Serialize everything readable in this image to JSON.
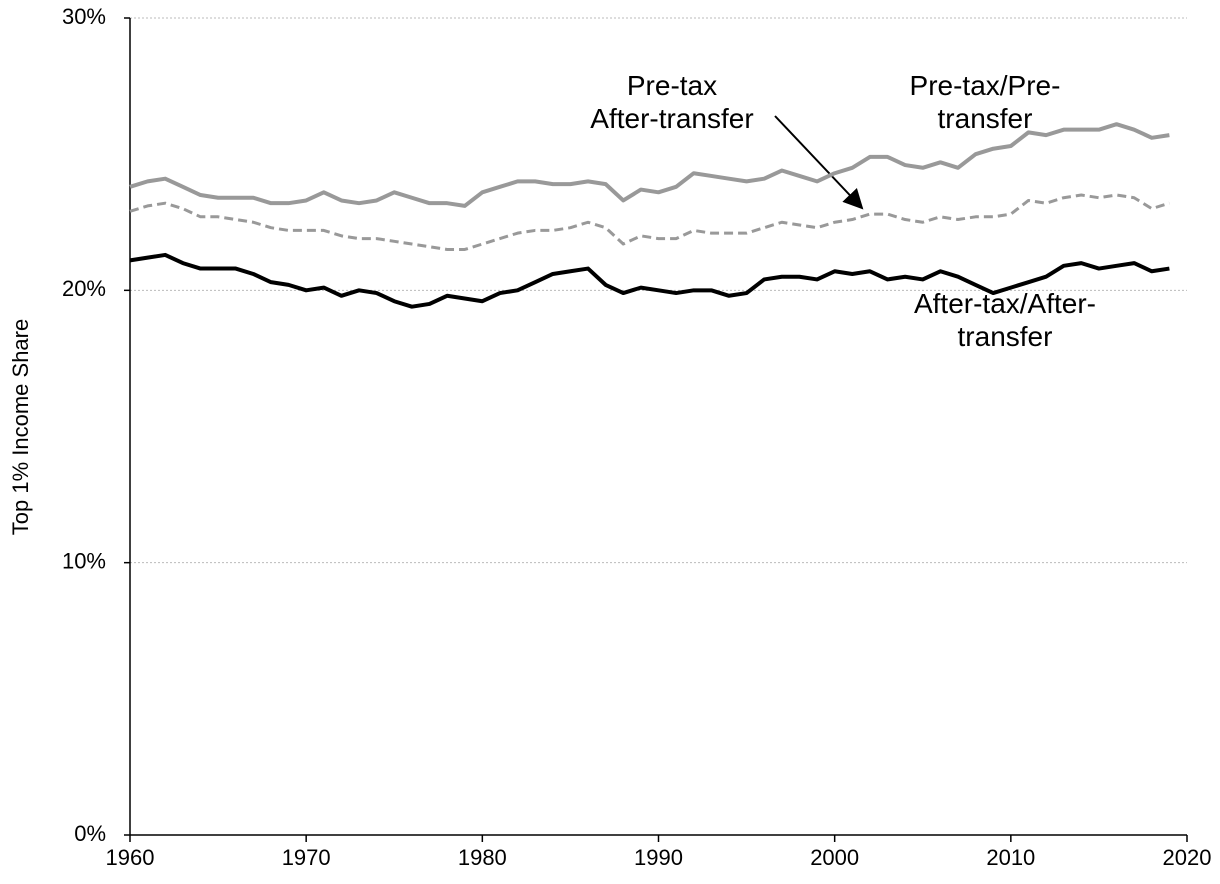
{
  "chart_data": {
    "type": "line",
    "y_axis_label": "Top 1% Income Share",
    "x": [
      1960,
      1961,
      1962,
      1963,
      1964,
      1965,
      1966,
      1967,
      1968,
      1969,
      1970,
      1971,
      1972,
      1973,
      1974,
      1975,
      1976,
      1977,
      1978,
      1979,
      1980,
      1981,
      1982,
      1983,
      1984,
      1985,
      1986,
      1987,
      1988,
      1989,
      1990,
      1991,
      1992,
      1993,
      1994,
      1995,
      1996,
      1997,
      1998,
      1999,
      2000,
      2001,
      2002,
      2003,
      2004,
      2005,
      2006,
      2007,
      2008,
      2009,
      2010,
      2011,
      2012,
      2013,
      2014,
      2015,
      2016,
      2017,
      2018,
      2019
    ],
    "series": [
      {
        "name": "Pre-tax/Pre-transfer",
        "color": "#999999",
        "dash": false,
        "values": [
          23.8,
          24.0,
          24.1,
          23.8,
          23.5,
          23.4,
          23.4,
          23.4,
          23.2,
          23.2,
          23.3,
          23.6,
          23.3,
          23.2,
          23.3,
          23.6,
          23.4,
          23.2,
          23.2,
          23.1,
          23.6,
          23.8,
          24.0,
          24.0,
          23.9,
          23.9,
          24.0,
          23.9,
          23.3,
          23.7,
          23.6,
          23.8,
          24.3,
          24.2,
          24.1,
          24.0,
          24.1,
          24.4,
          24.2,
          24.0,
          24.3,
          24.5,
          24.9,
          24.9,
          24.6,
          24.5,
          24.7,
          24.5,
          25.0,
          25.2,
          25.3,
          25.8,
          25.7,
          25.9,
          25.9,
          25.9,
          26.1,
          25.9,
          25.6,
          25.7
        ]
      },
      {
        "name": "Pre-tax\nAfter-transfer",
        "color": "#999999",
        "dash": true,
        "values": [
          22.9,
          23.1,
          23.2,
          23.0,
          22.7,
          22.7,
          22.6,
          22.5,
          22.3,
          22.2,
          22.2,
          22.2,
          22.0,
          21.9,
          21.9,
          21.8,
          21.7,
          21.6,
          21.5,
          21.5,
          21.7,
          21.9,
          22.1,
          22.2,
          22.2,
          22.3,
          22.5,
          22.3,
          21.7,
          22.0,
          21.9,
          21.9,
          22.2,
          22.1,
          22.1,
          22.1,
          22.3,
          22.5,
          22.4,
          22.3,
          22.5,
          22.6,
          22.8,
          22.8,
          22.6,
          22.5,
          22.7,
          22.6,
          22.7,
          22.7,
          22.8,
          23.3,
          23.2,
          23.4,
          23.5,
          23.4,
          23.5,
          23.4,
          23.0,
          23.2
        ]
      },
      {
        "name": "After-tax/After-transfer",
        "color": "#000000",
        "dash": false,
        "values": [
          21.1,
          21.2,
          21.3,
          21.0,
          20.8,
          20.8,
          20.8,
          20.6,
          20.3,
          20.2,
          20.0,
          20.1,
          19.8,
          20.0,
          19.9,
          19.6,
          19.4,
          19.5,
          19.8,
          19.7,
          19.6,
          19.9,
          20.0,
          20.3,
          20.6,
          20.7,
          20.8,
          20.2,
          19.9,
          20.1,
          20.0,
          19.9,
          20.0,
          20.0,
          19.8,
          19.9,
          20.4,
          20.5,
          20.5,
          20.4,
          20.7,
          20.6,
          20.7,
          20.4,
          20.5,
          20.4,
          20.7,
          20.5,
          20.2,
          19.9,
          20.1,
          20.3,
          20.5,
          20.9,
          21.0,
          20.8,
          20.9,
          21.0,
          20.7,
          20.8
        ]
      }
    ],
    "xlim": [
      1960,
      2020
    ],
    "xticks": [
      1960,
      1970,
      1980,
      1990,
      2000,
      2010,
      2020
    ],
    "ylim": [
      0,
      30
    ],
    "yticks": [
      {
        "value": 0,
        "label": "0%"
      },
      {
        "value": 10,
        "label": "10%"
      },
      {
        "value": 20,
        "label": "20%"
      },
      {
        "value": 30,
        "label": "30%"
      }
    ],
    "grid": true
  }
}
